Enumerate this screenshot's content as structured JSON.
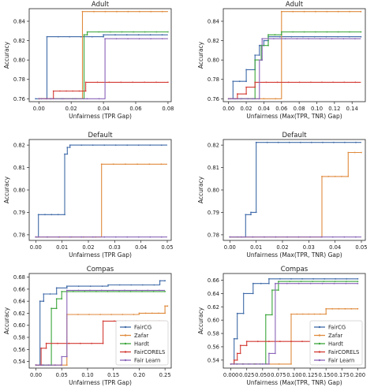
{
  "colors": {
    "FairCG": "#3f6aa8",
    "Zafar": "#e08a3c",
    "Hardt": "#3aa53a",
    "FairCORELS": "#d33a33",
    "Fair Learn": "#8a64b8"
  },
  "legend": [
    "FairCG",
    "Zafar",
    "Hardt",
    "FairCORELS",
    "Fair Learn"
  ],
  "chart_data": [
    {
      "type": "line",
      "title": "Adult",
      "xlabel": "Unfairness (TPR Gap)",
      "ylabel": "Accuracy",
      "xlim": [
        -0.006,
        0.082
      ],
      "ylim": [
        0.757,
        0.853
      ],
      "xticks": [
        "0.00",
        "0.02",
        "0.04",
        "0.06",
        "0.08"
      ],
      "xtick_values": [
        0,
        0.02,
        0.04,
        0.06,
        0.08
      ],
      "yticks": [
        "0.76",
        "0.78",
        "0.80",
        "0.82",
        "0.84"
      ],
      "ytick_values": [
        0.76,
        0.78,
        0.8,
        0.82,
        0.84
      ],
      "grid": false,
      "legend": false,
      "series": [
        {
          "name": "FairCG",
          "x": [
            -0.002,
            0.005,
            0.005,
            0.04,
            0.04,
            0.08
          ],
          "y": [
            0.76,
            0.76,
            0.824,
            0.824,
            0.826,
            0.826
          ]
        },
        {
          "name": "Zafar",
          "x": [
            0.0,
            0.027,
            0.027,
            0.08
          ],
          "y": [
            0.76,
            0.76,
            0.85,
            0.85
          ]
        },
        {
          "name": "Hardt",
          "x": [
            0.0,
            0.028,
            0.028,
            0.03,
            0.03,
            0.08
          ],
          "y": [
            0.76,
            0.76,
            0.826,
            0.826,
            0.829,
            0.829
          ]
        },
        {
          "name": "FairCORELS",
          "x": [
            0.0,
            0.009,
            0.009,
            0.029,
            0.029,
            0.08
          ],
          "y": [
            0.76,
            0.76,
            0.768,
            0.768,
            0.777,
            0.777
          ]
        },
        {
          "name": "Fair Learn",
          "x": [
            0.0,
            0.041,
            0.041,
            0.08
          ],
          "y": [
            0.76,
            0.76,
            0.822,
            0.822
          ]
        }
      ]
    },
    {
      "type": "line",
      "title": "Adult",
      "xlabel": "Unfairness (Max(TPR, TNR) Gap)",
      "ylabel": "Accuracy",
      "xlim": [
        -0.006,
        0.155
      ],
      "ylim": [
        0.757,
        0.853
      ],
      "xticks": [
        "0.00",
        "0.02",
        "0.04",
        "0.06",
        "0.08",
        "0.10",
        "0.12",
        "0.14"
      ],
      "xtick_values": [
        0,
        0.02,
        0.04,
        0.06,
        0.08,
        0.1,
        0.12,
        0.14
      ],
      "yticks": [
        "0.76",
        "0.78",
        "0.80",
        "0.82",
        "0.84"
      ],
      "ytick_values": [
        0.76,
        0.78,
        0.8,
        0.82,
        0.84
      ],
      "grid": false,
      "legend": false,
      "series": [
        {
          "name": "FairCG",
          "x": [
            0.002,
            0.005,
            0.005,
            0.02,
            0.02,
            0.03,
            0.03,
            0.035,
            0.035,
            0.04,
            0.04,
            0.045,
            0.045,
            0.15
          ],
          "y": [
            0.76,
            0.76,
            0.778,
            0.778,
            0.79,
            0.79,
            0.805,
            0.805,
            0.815,
            0.815,
            0.82,
            0.82,
            0.824,
            0.824
          ]
        },
        {
          "name": "Zafar",
          "x": [
            0.0,
            0.06,
            0.06,
            0.15
          ],
          "y": [
            0.76,
            0.76,
            0.85,
            0.85
          ]
        },
        {
          "name": "Hardt",
          "x": [
            0.0,
            0.03,
            0.03,
            0.037,
            0.037,
            0.045,
            0.045,
            0.06,
            0.06,
            0.15
          ],
          "y": [
            0.76,
            0.76,
            0.8,
            0.8,
            0.815,
            0.815,
            0.826,
            0.826,
            0.829,
            0.829
          ]
        },
        {
          "name": "FairCORELS",
          "x": [
            0.0,
            0.01,
            0.01,
            0.02,
            0.02,
            0.03,
            0.03,
            0.15
          ],
          "y": [
            0.76,
            0.76,
            0.765,
            0.765,
            0.772,
            0.772,
            0.777,
            0.777
          ]
        },
        {
          "name": "Fair Learn",
          "x": [
            0.0,
            0.035,
            0.035,
            0.038,
            0.038,
            0.15
          ],
          "y": [
            0.76,
            0.76,
            0.8,
            0.8,
            0.822,
            0.822
          ]
        }
      ]
    },
    {
      "type": "line",
      "title": "Default",
      "xlabel": "Unfairness (TPR Gap)",
      "ylabel": "Accuracy",
      "xlim": [
        -0.0025,
        0.0515
      ],
      "ylim": [
        0.7775,
        0.8225
      ],
      "xticks": [
        "0.00",
        "0.01",
        "0.02",
        "0.03",
        "0.04",
        "0.05"
      ],
      "xtick_values": [
        0,
        0.01,
        0.02,
        0.03,
        0.04,
        0.05
      ],
      "yticks": [
        "0.78",
        "0.79",
        "0.80",
        "0.81",
        "0.82"
      ],
      "ytick_values": [
        0.78,
        0.79,
        0.8,
        0.81,
        0.82
      ],
      "grid": false,
      "legend": false,
      "series": [
        {
          "name": "FairCG",
          "x": [
            0.0,
            0.001,
            0.001,
            0.011,
            0.011,
            0.012,
            0.012,
            0.013,
            0.013,
            0.05
          ],
          "y": [
            0.779,
            0.779,
            0.789,
            0.789,
            0.816,
            0.816,
            0.819,
            0.819,
            0.82,
            0.82
          ]
        },
        {
          "name": "Zafar",
          "x": [
            0.0,
            0.025,
            0.025,
            0.05
          ],
          "y": [
            0.779,
            0.779,
            0.8115,
            0.8115
          ]
        },
        {
          "name": "Fair Learn",
          "x": [
            0.0,
            0.05
          ],
          "y": [
            0.779,
            0.779
          ]
        }
      ]
    },
    {
      "type": "line",
      "title": "Default",
      "xlabel": "Unfairness (Max(TPR, TNR) Gap)",
      "ylabel": "Accuracy",
      "xlim": [
        -0.0025,
        0.0515
      ],
      "ylim": [
        0.7775,
        0.8225
      ],
      "xticks": [
        "0.00",
        "0.01",
        "0.02",
        "0.03",
        "0.04",
        "0.05"
      ],
      "xtick_values": [
        0,
        0.01,
        0.02,
        0.03,
        0.04,
        0.05
      ],
      "yticks": [
        "0.78",
        "0.79",
        "0.80",
        "0.81",
        "0.82"
      ],
      "ytick_values": [
        0.78,
        0.79,
        0.8,
        0.81,
        0.82
      ],
      "grid": false,
      "legend": false,
      "series": [
        {
          "name": "FairCG",
          "x": [
            0.0,
            0.006,
            0.006,
            0.008,
            0.008,
            0.01,
            0.01,
            0.05
          ],
          "y": [
            0.779,
            0.779,
            0.789,
            0.789,
            0.79,
            0.79,
            0.8212,
            0.8212
          ]
        },
        {
          "name": "Zafar",
          "x": [
            0.0,
            0.035,
            0.035,
            0.045,
            0.045,
            0.05
          ],
          "y": [
            0.779,
            0.779,
            0.806,
            0.806,
            0.8167,
            0.8167
          ]
        },
        {
          "name": "Fair Learn",
          "x": [
            0.0,
            0.05
          ],
          "y": [
            0.779,
            0.779
          ]
        }
      ]
    },
    {
      "type": "line",
      "title": "Compas",
      "xlabel": "Unfairness (TPR Gap)",
      "ylabel": "Accuracy",
      "xlim": [
        -0.013,
        0.262
      ],
      "ylim": [
        0.529,
        0.686
      ],
      "xticks": [
        "0.00",
        "0.05",
        "0.10",
        "0.15",
        "0.20",
        "0.25"
      ],
      "xtick_values": [
        0,
        0.05,
        0.1,
        0.15,
        0.2,
        0.25
      ],
      "yticks": [
        "0.54",
        "0.56",
        "0.58",
        "0.60",
        "0.62",
        "0.64",
        "0.66",
        "0.68"
      ],
      "ytick_values": [
        0.54,
        0.56,
        0.58,
        0.6,
        0.62,
        0.64,
        0.66,
        0.68
      ],
      "grid": false,
      "legend": true,
      "legend_position": "lower-right",
      "series": [
        {
          "name": "FairCG",
          "x": [
            0.0,
            0.008,
            0.008,
            0.015,
            0.015,
            0.04,
            0.04,
            0.06,
            0.06,
            0.14,
            0.14,
            0.24,
            0.24,
            0.25
          ],
          "y": [
            0.534,
            0.534,
            0.64,
            0.64,
            0.652,
            0.652,
            0.662,
            0.662,
            0.665,
            0.665,
            0.667,
            0.667,
            0.674,
            0.674
          ]
        },
        {
          "name": "Zafar",
          "x": [
            0.0,
            0.06,
            0.06,
            0.2,
            0.2,
            0.25,
            0.25,
            0.255
          ],
          "y": [
            0.534,
            0.534,
            0.618,
            0.618,
            0.62,
            0.62,
            0.632,
            0.632
          ]
        },
        {
          "name": "Hardt",
          "x": [
            0.0,
            0.03,
            0.03,
            0.04,
            0.04,
            0.05,
            0.05,
            0.25
          ],
          "y": [
            0.534,
            0.534,
            0.628,
            0.628,
            0.644,
            0.644,
            0.656,
            0.656
          ]
        },
        {
          "name": "FairCORELS",
          "x": [
            0.0,
            0.01,
            0.01,
            0.02,
            0.02,
            0.13,
            0.13,
            0.25
          ],
          "y": [
            0.534,
            0.534,
            0.562,
            0.562,
            0.57,
            0.57,
            0.607,
            0.607
          ]
        },
        {
          "name": "Fair Learn",
          "x": [
            0.0,
            0.05,
            0.05,
            0.06,
            0.06,
            0.25
          ],
          "y": [
            0.534,
            0.534,
            0.548,
            0.548,
            0.658,
            0.658
          ]
        }
      ]
    },
    {
      "type": "line",
      "title": "Compas",
      "xlabel": "Unfairness (Max(TPR, TNR) Gap)",
      "ylabel": "Accuracy",
      "xlim": [
        -0.012,
        0.212
      ],
      "ylim": [
        0.528,
        0.67
      ],
      "xticks": [
        "0.000",
        "0.025",
        "0.050",
        "0.075",
        "0.100",
        "0.125",
        "0.150",
        "0.175",
        "0.200"
      ],
      "xtick_values": [
        0,
        0.025,
        0.05,
        0.075,
        0.1,
        0.125,
        0.15,
        0.175,
        0.2
      ],
      "yticks": [
        "0.54",
        "0.56",
        "0.58",
        "0.60",
        "0.62",
        "0.64",
        "0.66"
      ],
      "ytick_values": [
        0.54,
        0.56,
        0.58,
        0.6,
        0.62,
        0.64,
        0.66
      ],
      "grid": false,
      "legend": true,
      "legend_position": "lower-right",
      "series": [
        {
          "name": "FairCG",
          "x": [
            0.0,
            0.005,
            0.005,
            0.01,
            0.01,
            0.02,
            0.02,
            0.035,
            0.035,
            0.06,
            0.06,
            0.2
          ],
          "y": [
            0.534,
            0.534,
            0.572,
            0.572,
            0.61,
            0.61,
            0.64,
            0.64,
            0.655,
            0.655,
            0.662,
            0.662
          ]
        },
        {
          "name": "Zafar",
          "x": [
            0.0,
            0.095,
            0.095,
            0.15,
            0.15,
            0.2
          ],
          "y": [
            0.534,
            0.534,
            0.609,
            0.609,
            0.617,
            0.617
          ]
        },
        {
          "name": "Hardt",
          "x": [
            0.0,
            0.055,
            0.055,
            0.065,
            0.065,
            0.075,
            0.075,
            0.2
          ],
          "y": [
            0.534,
            0.534,
            0.608,
            0.608,
            0.645,
            0.645,
            0.658,
            0.658
          ]
        },
        {
          "name": "FairCORELS",
          "x": [
            0.0,
            0.005,
            0.005,
            0.01,
            0.01,
            0.015,
            0.015,
            0.025,
            0.025,
            0.2
          ],
          "y": [
            0.534,
            0.534,
            0.54,
            0.54,
            0.55,
            0.55,
            0.562,
            0.562,
            0.568,
            0.568
          ]
        },
        {
          "name": "Fair Learn",
          "x": [
            0.0,
            0.06,
            0.06,
            0.07,
            0.07,
            0.2
          ],
          "y": [
            0.534,
            0.534,
            0.55,
            0.55,
            0.655,
            0.655
          ]
        }
      ]
    }
  ]
}
